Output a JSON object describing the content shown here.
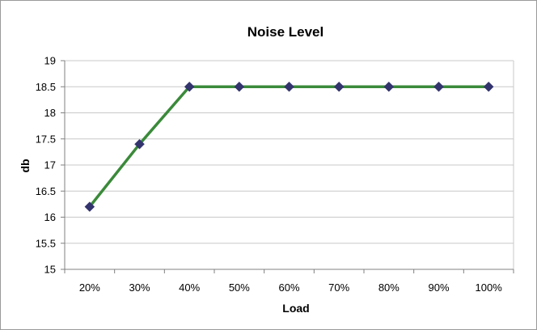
{
  "chart_data": {
    "type": "line",
    "title": "Noise Level",
    "xlabel": "Load",
    "ylabel": "db",
    "categories": [
      "20%",
      "30%",
      "40%",
      "50%",
      "60%",
      "70%",
      "80%",
      "90%",
      "100%"
    ],
    "series": [
      {
        "values": [
          16.2,
          17.4,
          18.5,
          18.5,
          18.5,
          18.5,
          18.5,
          18.5,
          18.5
        ],
        "line_color": "#3a8a3a",
        "marker_color": "#33336e",
        "marker": "diamond"
      }
    ],
    "ylim": [
      15,
      19
    ],
    "yticks": [
      "15",
      "15.5",
      "16",
      "16.5",
      "17",
      "17.5",
      "18",
      "18.5",
      "19"
    ],
    "grid": true,
    "legend": "none",
    "colors": {
      "gridline": "#c8c8c8",
      "axis": "#808080",
      "frame": "#9a9a9a"
    }
  }
}
